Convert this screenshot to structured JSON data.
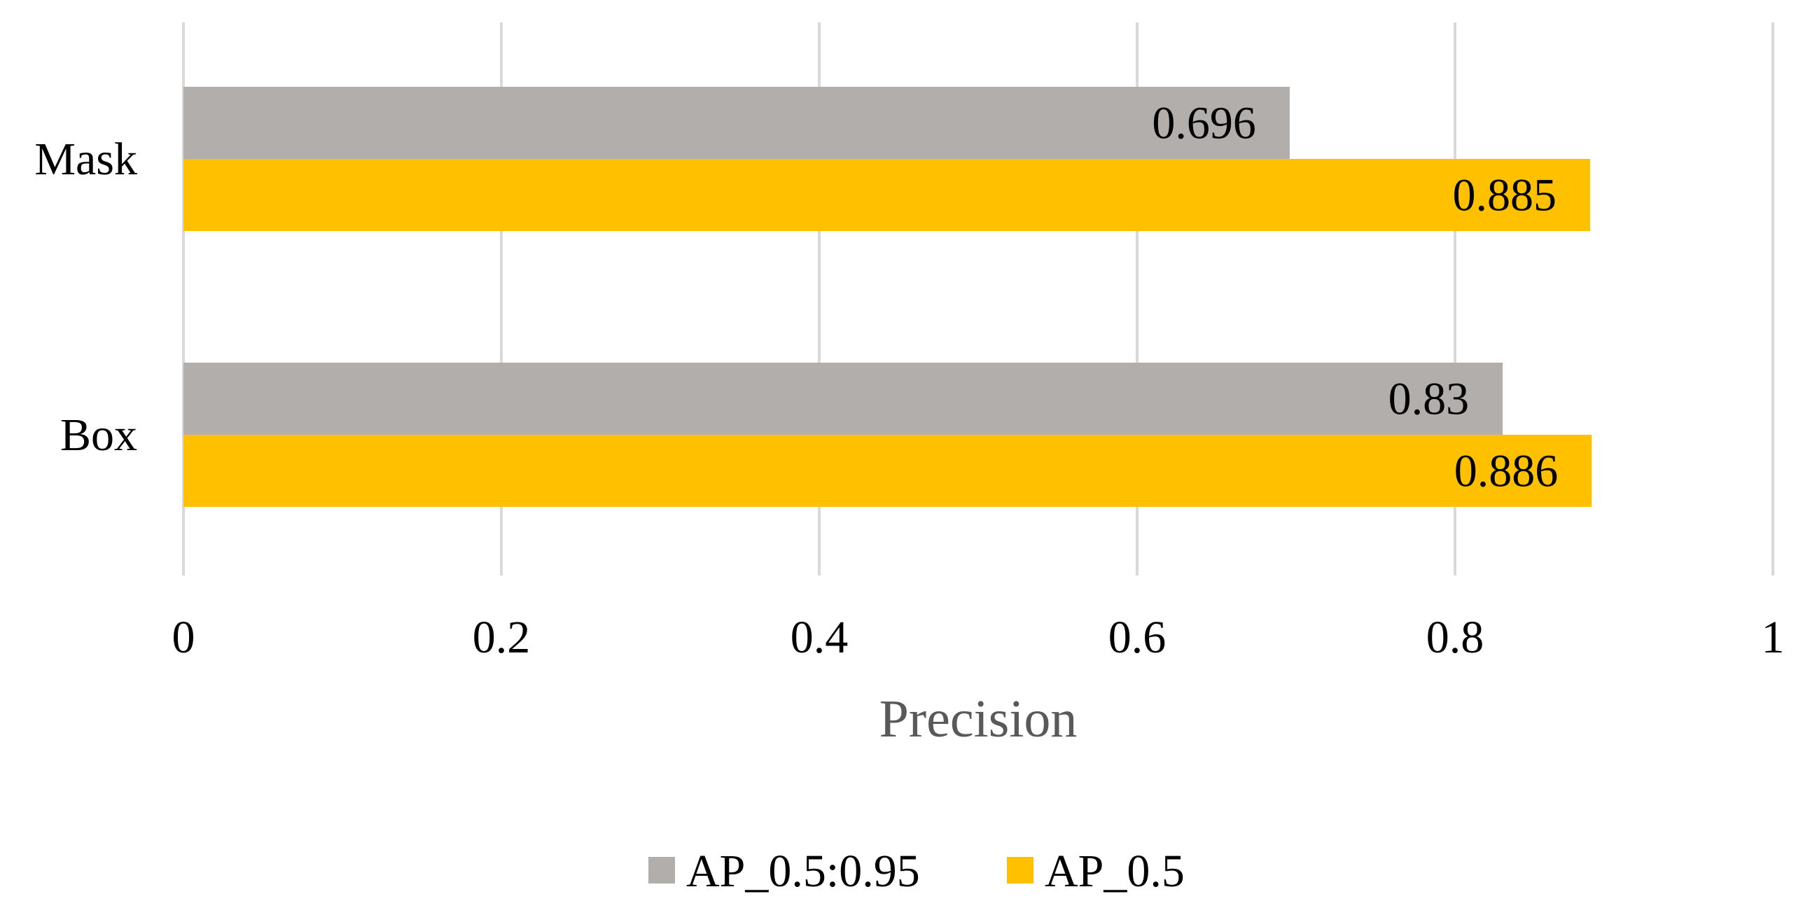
{
  "chart_data": {
    "type": "bar",
    "orientation": "horizontal",
    "categories": [
      "Mask",
      "Box"
    ],
    "series": [
      {
        "name": "AP_0.5:0.95",
        "values": [
          0.696,
          0.83
        ],
        "color": "#b2aeab",
        "labels": [
          "0.696",
          "0.83"
        ]
      },
      {
        "name": "AP_0.5",
        "values": [
          0.885,
          0.886
        ],
        "color": "#ffc000",
        "labels": [
          "0.885",
          "0.886"
        ]
      }
    ],
    "xlabel": "Precision",
    "ylabel": "",
    "xlim": [
      0,
      1
    ],
    "xticks": [
      0,
      0.2,
      0.4,
      0.6,
      0.8,
      1
    ],
    "xtick_labels": [
      "0",
      "0.2",
      "0.4",
      "0.6",
      "0.8",
      "1"
    ],
    "grid": true,
    "grid_color": "#d9d9d9",
    "legend_position": "bottom"
  }
}
